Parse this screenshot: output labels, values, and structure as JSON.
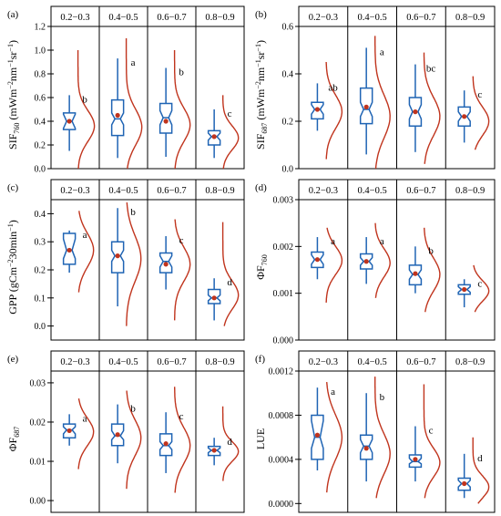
{
  "colors": {
    "box": "#1f64b4",
    "curve": "#c0341d",
    "mean": "#c0341d",
    "axis": "#000000"
  },
  "chart_data": [
    {
      "type": "box",
      "panel_label": "(a)",
      "ylim": [
        0,
        1.2
      ],
      "yticks": [
        "0.0",
        "0.2",
        "0.4",
        "0.6",
        "0.8",
        "1.0",
        "1.2"
      ],
      "ylabel": {
        "base": "SIF",
        "sub": "760",
        "rest1": " (mWm",
        "sup1": "−2",
        "rest2": "nm",
        "sup2": "−1",
        "rest3": "sr",
        "sup3": "−1",
        "rest4": ")"
      },
      "categories": [
        "0.2−0.3",
        "0.4−0.5",
        "0.6−0.7",
        "0.8−0.9"
      ],
      "boxes": [
        {
          "wlo": 0.15,
          "q1": 0.33,
          "med": 0.4,
          "q3": 0.47,
          "whi": 0.62,
          "mean": 0.4,
          "nlo": 0.34,
          "nhi": 0.46,
          "letter": "b"
        },
        {
          "wlo": 0.09,
          "q1": 0.28,
          "med": 0.42,
          "q3": 0.58,
          "whi": 0.93,
          "mean": 0.45,
          "nlo": 0.37,
          "nhi": 0.47,
          "letter": "a"
        },
        {
          "wlo": 0.1,
          "q1": 0.3,
          "med": 0.43,
          "q3": 0.55,
          "whi": 0.85,
          "mean": 0.4,
          "nlo": 0.37,
          "nhi": 0.49,
          "letter": "b"
        },
        {
          "wlo": 0.09,
          "q1": 0.2,
          "med": 0.27,
          "q3": 0.32,
          "whi": 0.5,
          "mean": 0.27,
          "nlo": 0.24,
          "nhi": 0.3,
          "letter": "c"
        }
      ],
      "curves": [
        {
          "mu": 0.36,
          "sigma": 0.13,
          "amp": 0.58,
          "lo": 0.0,
          "hi": 1.0
        },
        {
          "mu": 0.35,
          "sigma": 0.15,
          "amp": 0.55,
          "lo": 0.0,
          "hi": 1.1
        },
        {
          "mu": 0.37,
          "sigma": 0.14,
          "amp": 0.55,
          "lo": 0.0,
          "hi": 1.0
        },
        {
          "mu": 0.26,
          "sigma": 0.1,
          "amp": 0.55,
          "lo": 0.0,
          "hi": 0.62
        }
      ]
    },
    {
      "type": "box",
      "panel_label": "(b)",
      "ylim": [
        0,
        0.6
      ],
      "yticks": [
        "0.0",
        "0.2",
        "0.4",
        "0.6"
      ],
      "ylabel": {
        "base": "SIF",
        "sub": "687",
        "rest1": " (mWm",
        "sup1": "−2",
        "rest2": "nm",
        "sup2": "−1",
        "rest3": "sr",
        "sup3": "−1",
        "rest4": ")"
      },
      "categories": [
        "0.2−0.3",
        "0.4−0.5",
        "0.6−0.7",
        "0.8−0.9"
      ],
      "boxes": [
        {
          "wlo": 0.16,
          "q1": 0.21,
          "med": 0.25,
          "q3": 0.28,
          "whi": 0.36,
          "mean": 0.25,
          "nlo": 0.23,
          "nhi": 0.27,
          "letter": "ab"
        },
        {
          "wlo": 0.06,
          "q1": 0.19,
          "med": 0.25,
          "q3": 0.34,
          "whi": 0.51,
          "mean": 0.26,
          "nlo": 0.22,
          "nhi": 0.28,
          "letter": "a"
        },
        {
          "wlo": 0.07,
          "q1": 0.18,
          "med": 0.24,
          "q3": 0.3,
          "whi": 0.44,
          "mean": 0.24,
          "nlo": 0.21,
          "nhi": 0.27,
          "letter": "bc"
        },
        {
          "wlo": 0.11,
          "q1": 0.18,
          "med": 0.22,
          "q3": 0.26,
          "whi": 0.33,
          "mean": 0.22,
          "nlo": 0.2,
          "nhi": 0.24,
          "letter": "c"
        }
      ],
      "curves": [
        {
          "mu": 0.24,
          "sigma": 0.07,
          "amp": 0.55,
          "lo": 0.04,
          "hi": 0.45
        },
        {
          "mu": 0.22,
          "sigma": 0.09,
          "amp": 0.52,
          "lo": 0.0,
          "hi": 0.56
        },
        {
          "mu": 0.22,
          "sigma": 0.08,
          "amp": 0.55,
          "lo": 0.02,
          "hi": 0.49
        },
        {
          "mu": 0.2,
          "sigma": 0.06,
          "amp": 0.55,
          "lo": 0.08,
          "hi": 0.39
        }
      ]
    },
    {
      "type": "box",
      "panel_label": "(c)",
      "ylim": [
        -0.05,
        0.45
      ],
      "yticks": [
        "0.0",
        "0.1",
        "0.2",
        "0.3",
        "0.4"
      ],
      "ylabel": {
        "base": "GPP (gCm",
        "sup1": "−2",
        "rest2": "30min",
        "sup2": "−1",
        "rest4": ")"
      },
      "categories": [
        "0.2−0.3",
        "0.4−0.5",
        "0.6−0.7",
        "0.8−0.9"
      ],
      "boxes": [
        {
          "wlo": 0.19,
          "q1": 0.22,
          "med": 0.27,
          "q3": 0.33,
          "whi": 0.34,
          "mean": 0.27,
          "nlo": 0.24,
          "nhi": 0.31,
          "letter": "a"
        },
        {
          "wlo": 0.07,
          "q1": 0.19,
          "med": 0.25,
          "q3": 0.3,
          "whi": 0.42,
          "mean": 0.25,
          "nlo": 0.23,
          "nhi": 0.27,
          "letter": "b"
        },
        {
          "wlo": 0.13,
          "q1": 0.19,
          "med": 0.23,
          "q3": 0.26,
          "whi": 0.32,
          "mean": 0.22,
          "nlo": 0.21,
          "nhi": 0.25,
          "letter": "c"
        },
        {
          "wlo": 0.02,
          "q1": 0.08,
          "med": 0.1,
          "q3": 0.13,
          "whi": 0.17,
          "mean": 0.1,
          "nlo": 0.09,
          "nhi": 0.11,
          "letter": "d"
        }
      ],
      "curves": [
        {
          "mu": 0.27,
          "sigma": 0.06,
          "amp": 0.55,
          "lo": 0.12,
          "hi": 0.41
        },
        {
          "mu": 0.24,
          "sigma": 0.08,
          "amp": 0.52,
          "lo": 0.0,
          "hi": 0.44
        },
        {
          "mu": 0.22,
          "sigma": 0.06,
          "amp": 0.55,
          "lo": 0.02,
          "hi": 0.38
        },
        {
          "mu": 0.11,
          "sigma": 0.05,
          "amp": 0.55,
          "lo": 0.0,
          "hi": 0.37
        }
      ]
    },
    {
      "type": "box",
      "panel_label": "(d)",
      "ylim": [
        0,
        0.003
      ],
      "yticks": [
        "0.000",
        "0.001",
        "0.002",
        "0.003"
      ],
      "ylabel": {
        "base": "ΦF",
        "sub": "760"
      },
      "categories": [
        "0.2−0.3",
        "0.4−0.5",
        "0.6−0.7",
        "0.8−0.9"
      ],
      "boxes": [
        {
          "wlo": 0.0013,
          "q1": 0.00155,
          "med": 0.00172,
          "q3": 0.00188,
          "whi": 0.0022,
          "mean": 0.00172,
          "nlo": 0.00162,
          "nhi": 0.00182,
          "letter": "a"
        },
        {
          "wlo": 0.0012,
          "q1": 0.00152,
          "med": 0.00168,
          "q3": 0.00184,
          "whi": 0.0022,
          "mean": 0.00168,
          "nlo": 0.0016,
          "nhi": 0.00176,
          "letter": "a"
        },
        {
          "wlo": 0.001,
          "q1": 0.00118,
          "med": 0.0014,
          "q3": 0.0016,
          "whi": 0.002,
          "mean": 0.00142,
          "nlo": 0.0013,
          "nhi": 0.0015,
          "letter": "b"
        },
        {
          "wlo": 0.0007,
          "q1": 0.00098,
          "med": 0.00108,
          "q3": 0.00118,
          "whi": 0.0013,
          "mean": 0.00108,
          "nlo": 0.00102,
          "nhi": 0.00114,
          "letter": "c"
        }
      ],
      "curves": [
        {
          "mu": 0.0017,
          "sigma": 0.0003,
          "amp": 0.55,
          "lo": 0.0008,
          "hi": 0.0024
        },
        {
          "mu": 0.00165,
          "sigma": 0.0003,
          "amp": 0.52,
          "lo": 0.0009,
          "hi": 0.0025
        },
        {
          "mu": 0.0014,
          "sigma": 0.00035,
          "amp": 0.55,
          "lo": 0.0006,
          "hi": 0.0024
        },
        {
          "mu": 0.00105,
          "sigma": 0.00022,
          "amp": 0.55,
          "lo": 0.0006,
          "hi": 0.0016
        }
      ]
    },
    {
      "type": "box",
      "panel_label": "(e)",
      "ylim": [
        -0.003,
        0.033
      ],
      "yticks": [
        "0.00",
        "0.01",
        "0.02",
        "0.03"
      ],
      "ylabel": {
        "base": "ΦF",
        "sub": "687"
      },
      "categories": [
        "0.2−0.3",
        "0.4−0.5",
        "0.6−0.7",
        "0.8−0.9"
      ],
      "boxes": [
        {
          "wlo": 0.014,
          "q1": 0.016,
          "med": 0.018,
          "q3": 0.0195,
          "whi": 0.022,
          "mean": 0.0178,
          "nlo": 0.017,
          "nhi": 0.0188,
          "letter": "a"
        },
        {
          "wlo": 0.0095,
          "q1": 0.014,
          "med": 0.0165,
          "q3": 0.0195,
          "whi": 0.0245,
          "mean": 0.0168,
          "nlo": 0.0155,
          "nhi": 0.0178,
          "letter": "b"
        },
        {
          "wlo": 0.007,
          "q1": 0.0115,
          "med": 0.014,
          "q3": 0.017,
          "whi": 0.0225,
          "mean": 0.0145,
          "nlo": 0.013,
          "nhi": 0.015,
          "letter": "c"
        },
        {
          "wlo": 0.009,
          "q1": 0.0115,
          "med": 0.0128,
          "q3": 0.0138,
          "whi": 0.016,
          "mean": 0.0128,
          "nlo": 0.0122,
          "nhi": 0.0134,
          "letter": "d"
        }
      ],
      "curves": [
        {
          "mu": 0.0175,
          "sigma": 0.0035,
          "amp": 0.55,
          "lo": 0.008,
          "hi": 0.026
        },
        {
          "mu": 0.016,
          "sigma": 0.0045,
          "amp": 0.52,
          "lo": 0.003,
          "hi": 0.028
        },
        {
          "mu": 0.014,
          "sigma": 0.0045,
          "amp": 0.55,
          "lo": 0.002,
          "hi": 0.029
        },
        {
          "mu": 0.0125,
          "sigma": 0.0025,
          "amp": 0.55,
          "lo": 0.005,
          "hi": 0.024
        }
      ]
    },
    {
      "type": "box",
      "panel_label": "(f)",
      "ylim": [
        -8e-05,
        0.0012
      ],
      "yticks": [
        "0.0000",
        "0.0004",
        "0.0008",
        "0.0012"
      ],
      "ylabel": {
        "base": "LUE"
      },
      "categories": [
        "0.2−0.3",
        "0.4−0.5",
        "0.6−0.7",
        "0.8−0.9"
      ],
      "boxes": [
        {
          "wlo": 0.0003,
          "q1": 0.0004,
          "med": 0.0006,
          "q3": 0.0008,
          "whi": 0.00105,
          "mean": 0.00062,
          "nlo": 0.0005,
          "nhi": 0.00075,
          "letter": "a"
        },
        {
          "wlo": 0.0002,
          "q1": 0.0004,
          "med": 0.00052,
          "q3": 0.00062,
          "whi": 0.001,
          "mean": 0.0005,
          "nlo": 0.00046,
          "nhi": 0.00058,
          "letter": "b"
        },
        {
          "wlo": 0.0002,
          "q1": 0.00033,
          "med": 0.00038,
          "q3": 0.00044,
          "whi": 0.0007,
          "mean": 0.0004,
          "nlo": 0.00036,
          "nhi": 0.00041,
          "letter": "c"
        },
        {
          "wlo": 5e-05,
          "q1": 0.00012,
          "med": 0.00018,
          "q3": 0.00023,
          "whi": 0.00045,
          "mean": 0.00018,
          "nlo": 0.00015,
          "nhi": 0.00021,
          "letter": "d"
        }
      ],
      "curves": [
        {
          "mu": 0.0006,
          "sigma": 0.0002,
          "amp": 0.55,
          "lo": 0.0001,
          "hi": 0.0011
        },
        {
          "mu": 0.00045,
          "sigma": 0.00018,
          "amp": 0.52,
          "lo": 5e-05,
          "hi": 0.00115
        },
        {
          "mu": 0.00037,
          "sigma": 0.00013,
          "amp": 0.55,
          "lo": 5e-05,
          "hi": 0.00108
        },
        {
          "mu": 0.00015,
          "sigma": 0.0001,
          "amp": 0.55,
          "lo": 0.0,
          "hi": 0.0006
        }
      ]
    }
  ]
}
